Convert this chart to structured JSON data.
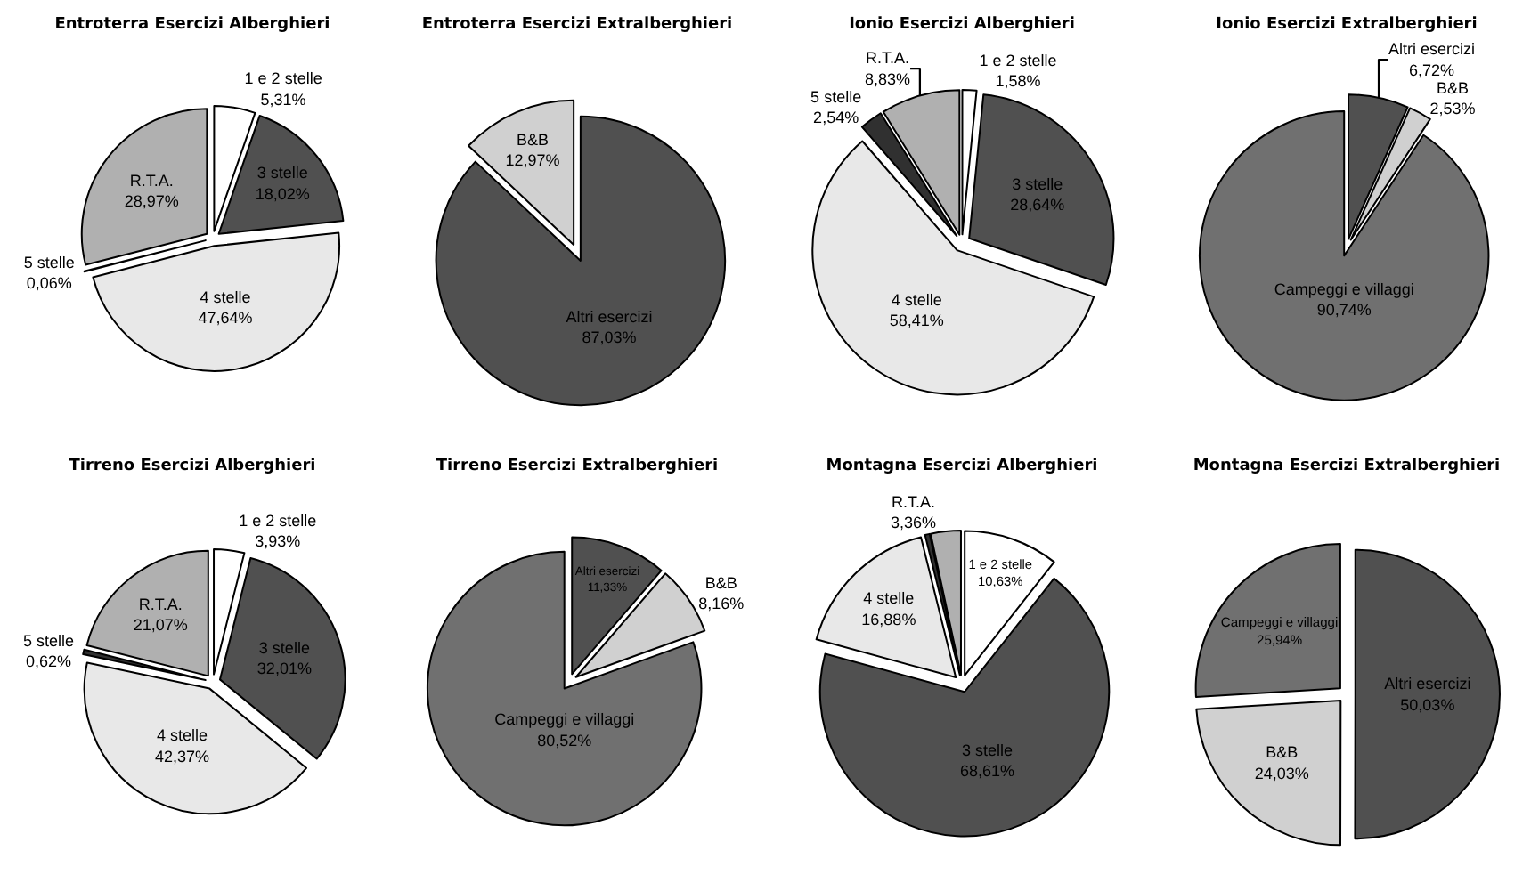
{
  "chart_data": [
    {
      "type": "pie",
      "title": "Entroterra Esercizi Alberghieri",
      "categories": [
        "1 e 2 stelle",
        "3 stelle",
        "4 stelle",
        "5 stelle",
        "R.T.A."
      ],
      "values": [
        5.31,
        18.02,
        47.64,
        0.06,
        28.97
      ],
      "value_labels": [
        "5,31%",
        "18,02%",
        "47,64%",
        "0,06%",
        "28,97%"
      ],
      "colors": [
        "#ffffff",
        "#505050",
        "#e8e8e8",
        "#303030",
        "#b0b0b0"
      ]
    },
    {
      "type": "pie",
      "title": "Entroterra Esercizi Extralberghieri",
      "categories": [
        "Altri esercizi",
        "B&B"
      ],
      "values": [
        87.03,
        12.97
      ],
      "value_labels": [
        "87,03%",
        "12,97%"
      ],
      "colors": [
        "#505050",
        "#d0d0d0"
      ]
    },
    {
      "type": "pie",
      "title": "Ionio Esercizi Alberghieri",
      "categories": [
        "1 e 2 stelle",
        "3 stelle",
        "4 stelle",
        "5 stelle",
        "R.T.A."
      ],
      "values": [
        1.58,
        28.64,
        58.41,
        2.54,
        8.83
      ],
      "value_labels": [
        "1,58%",
        "28,64%",
        "58,41%",
        "2,54%",
        "8,83%"
      ],
      "colors": [
        "#ffffff",
        "#505050",
        "#e8e8e8",
        "#303030",
        "#b0b0b0"
      ]
    },
    {
      "type": "pie",
      "title": "Ionio Esercizi Extralberghieri",
      "categories": [
        "Altri esercizi",
        "B&B",
        "Campeggi e villaggi"
      ],
      "values": [
        6.72,
        2.53,
        90.74
      ],
      "value_labels": [
        "6,72%",
        "2,53%",
        "90,74%"
      ],
      "colors": [
        "#505050",
        "#d0d0d0",
        "#707070"
      ]
    },
    {
      "type": "pie",
      "title": "Tirreno Esercizi Alberghieri",
      "categories": [
        "1 e 2 stelle",
        "3 stelle",
        "4 stelle",
        "5 stelle",
        "R.T.A."
      ],
      "values": [
        3.93,
        32.01,
        42.37,
        0.62,
        21.07
      ],
      "value_labels": [
        "3,93%",
        "32,01%",
        "42,37%",
        "0,62%",
        "21,07%"
      ],
      "colors": [
        "#ffffff",
        "#505050",
        "#e8e8e8",
        "#303030",
        "#b0b0b0"
      ]
    },
    {
      "type": "pie",
      "title": "Tirreno Esercizi Extralberghieri",
      "categories": [
        "Altri esercizi",
        "B&B",
        "Campeggi e villaggi"
      ],
      "values": [
        11.33,
        8.16,
        80.52
      ],
      "value_labels": [
        "11,33%",
        "8,16%",
        "80,52%"
      ],
      "colors": [
        "#505050",
        "#d0d0d0",
        "#707070"
      ]
    },
    {
      "type": "pie",
      "title": "Montagna Esercizi Alberghieri",
      "categories": [
        "1 e 2 stelle",
        "3 stelle",
        "4 stelle",
        null,
        "R.T.A."
      ],
      "values": [
        10.63,
        68.61,
        16.88,
        0.52,
        3.36
      ],
      "value_labels": [
        "10,63%",
        "68,61%",
        "16,88%",
        null,
        "3,36%"
      ],
      "colors": [
        "#ffffff",
        "#505050",
        "#e8e8e8",
        "#303030",
        "#b0b0b0"
      ]
    },
    {
      "type": "pie",
      "title": "Montagna Esercizi Extralberghieri",
      "categories": [
        "Altri esercizi",
        "B&B",
        "Campeggi e villaggi"
      ],
      "values": [
        50.03,
        24.03,
        25.94
      ],
      "value_labels": [
        "50,03%",
        "24,03%",
        "25,94%"
      ],
      "colors": [
        "#505050",
        "#d0d0d0",
        "#707070"
      ]
    }
  ]
}
